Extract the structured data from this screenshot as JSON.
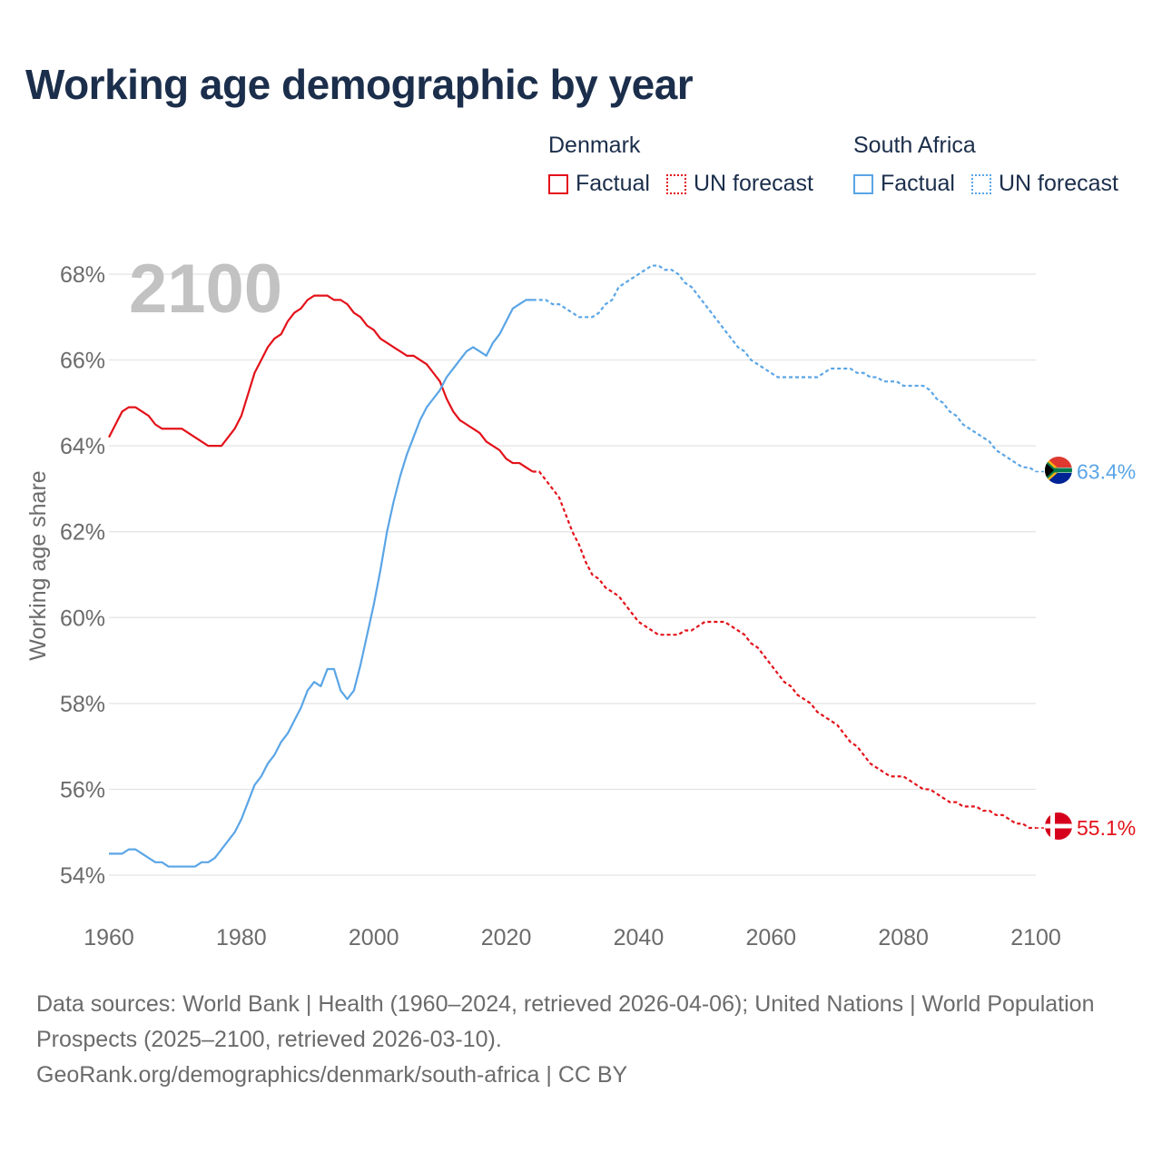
{
  "title": "Working age demographic by year",
  "legend": {
    "groups": [
      {
        "name": "Denmark",
        "factual": "Factual",
        "forecast": "UN forecast",
        "color": "#e3121a"
      },
      {
        "name": "South Africa",
        "factual": "Factual",
        "forecast": "UN forecast",
        "color": "#5aa5e6"
      }
    ]
  },
  "footer": {
    "sources": "Data sources: World Bank | Health (1960–2024, retrieved 2026-04-06); United Nations | World Population Prospects (2025–2100, retrieved 2026-03-10).",
    "link": "GeoRank.org/demographics/denmark/south-africa | CC BY"
  },
  "chart_data": {
    "type": "line",
    "title": "Working age demographic by year",
    "year_watermark": "2100",
    "xlabel": "",
    "ylabel": "Working age share",
    "xlim": [
      1960,
      2100
    ],
    "ylim": [
      53.8,
      68.4
    ],
    "x_ticks": [
      1960,
      1980,
      2000,
      2020,
      2040,
      2060,
      2080,
      2100
    ],
    "y_ticks": [
      54,
      56,
      58,
      60,
      62,
      64,
      66,
      68
    ],
    "y_tick_labels": [
      "54%",
      "56%",
      "58%",
      "60%",
      "62%",
      "64%",
      "66%",
      "68%"
    ],
    "grid": true,
    "factual_end_year": 2024,
    "series": [
      {
        "name": "Denmark",
        "color": "#e3121a",
        "end_label": "55.1%",
        "points": [
          [
            1960,
            64.2
          ],
          [
            1961,
            64.5
          ],
          [
            1962,
            64.8
          ],
          [
            1963,
            64.9
          ],
          [
            1964,
            64.9
          ],
          [
            1965,
            64.8
          ],
          [
            1966,
            64.7
          ],
          [
            1967,
            64.5
          ],
          [
            1968,
            64.4
          ],
          [
            1969,
            64.4
          ],
          [
            1970,
            64.4
          ],
          [
            1971,
            64.4
          ],
          [
            1972,
            64.3
          ],
          [
            1973,
            64.2
          ],
          [
            1974,
            64.1
          ],
          [
            1975,
            64.0
          ],
          [
            1976,
            64.0
          ],
          [
            1977,
            64.0
          ],
          [
            1978,
            64.2
          ],
          [
            1979,
            64.4
          ],
          [
            1980,
            64.7
          ],
          [
            1981,
            65.2
          ],
          [
            1982,
            65.7
          ],
          [
            1983,
            66.0
          ],
          [
            1984,
            66.3
          ],
          [
            1985,
            66.5
          ],
          [
            1986,
            66.6
          ],
          [
            1987,
            66.9
          ],
          [
            1988,
            67.1
          ],
          [
            1989,
            67.2
          ],
          [
            1990,
            67.4
          ],
          [
            1991,
            67.5
          ],
          [
            1992,
            67.5
          ],
          [
            1993,
            67.5
          ],
          [
            1994,
            67.4
          ],
          [
            1995,
            67.4
          ],
          [
            1996,
            67.3
          ],
          [
            1997,
            67.1
          ],
          [
            1998,
            67.0
          ],
          [
            1999,
            66.8
          ],
          [
            2000,
            66.7
          ],
          [
            2001,
            66.5
          ],
          [
            2002,
            66.4
          ],
          [
            2003,
            66.3
          ],
          [
            2004,
            66.2
          ],
          [
            2005,
            66.1
          ],
          [
            2006,
            66.1
          ],
          [
            2007,
            66.0
          ],
          [
            2008,
            65.9
          ],
          [
            2009,
            65.7
          ],
          [
            2010,
            65.5
          ],
          [
            2011,
            65.1
          ],
          [
            2012,
            64.8
          ],
          [
            2013,
            64.6
          ],
          [
            2014,
            64.5
          ],
          [
            2015,
            64.4
          ],
          [
            2016,
            64.3
          ],
          [
            2017,
            64.1
          ],
          [
            2018,
            64.0
          ],
          [
            2019,
            63.9
          ],
          [
            2020,
            63.7
          ],
          [
            2021,
            63.6
          ],
          [
            2022,
            63.6
          ],
          [
            2023,
            63.5
          ],
          [
            2024,
            63.4
          ],
          [
            2025,
            63.4
          ],
          [
            2026,
            63.2
          ],
          [
            2027,
            63.0
          ],
          [
            2028,
            62.8
          ],
          [
            2029,
            62.4
          ],
          [
            2030,
            62.0
          ],
          [
            2031,
            61.7
          ],
          [
            2032,
            61.3
          ],
          [
            2033,
            61.0
          ],
          [
            2034,
            60.9
          ],
          [
            2035,
            60.7
          ],
          [
            2036,
            60.6
          ],
          [
            2037,
            60.5
          ],
          [
            2038,
            60.3
          ],
          [
            2039,
            60.1
          ],
          [
            2040,
            59.9
          ],
          [
            2041,
            59.8
          ],
          [
            2042,
            59.7
          ],
          [
            2043,
            59.6
          ],
          [
            2044,
            59.6
          ],
          [
            2045,
            59.6
          ],
          [
            2046,
            59.6
          ],
          [
            2047,
            59.7
          ],
          [
            2048,
            59.7
          ],
          [
            2049,
            59.8
          ],
          [
            2050,
            59.9
          ],
          [
            2051,
            59.9
          ],
          [
            2052,
            59.9
          ],
          [
            2053,
            59.9
          ],
          [
            2054,
            59.8
          ],
          [
            2055,
            59.7
          ],
          [
            2056,
            59.6
          ],
          [
            2057,
            59.4
          ],
          [
            2058,
            59.3
          ],
          [
            2059,
            59.1
          ],
          [
            2060,
            58.9
          ],
          [
            2061,
            58.7
          ],
          [
            2062,
            58.5
          ],
          [
            2063,
            58.4
          ],
          [
            2064,
            58.2
          ],
          [
            2065,
            58.1
          ],
          [
            2066,
            58.0
          ],
          [
            2067,
            57.8
          ],
          [
            2068,
            57.7
          ],
          [
            2069,
            57.6
          ],
          [
            2070,
            57.5
          ],
          [
            2071,
            57.3
          ],
          [
            2072,
            57.1
          ],
          [
            2073,
            57.0
          ],
          [
            2074,
            56.8
          ],
          [
            2075,
            56.6
          ],
          [
            2076,
            56.5
          ],
          [
            2077,
            56.4
          ],
          [
            2078,
            56.3
          ],
          [
            2079,
            56.3
          ],
          [
            2080,
            56.3
          ],
          [
            2081,
            56.2
          ],
          [
            2082,
            56.1
          ],
          [
            2083,
            56.0
          ],
          [
            2084,
            56.0
          ],
          [
            2085,
            55.9
          ],
          [
            2086,
            55.8
          ],
          [
            2087,
            55.7
          ],
          [
            2088,
            55.7
          ],
          [
            2089,
            55.6
          ],
          [
            2090,
            55.6
          ],
          [
            2091,
            55.6
          ],
          [
            2092,
            55.5
          ],
          [
            2093,
            55.5
          ],
          [
            2094,
            55.4
          ],
          [
            2095,
            55.4
          ],
          [
            2096,
            55.3
          ],
          [
            2097,
            55.2
          ],
          [
            2098,
            55.2
          ],
          [
            2099,
            55.1
          ],
          [
            2100,
            55.1
          ]
        ]
      },
      {
        "name": "South Africa",
        "color": "#5aa5e6",
        "end_label": "63.4%",
        "points": [
          [
            1960,
            54.5
          ],
          [
            1961,
            54.5
          ],
          [
            1962,
            54.5
          ],
          [
            1963,
            54.6
          ],
          [
            1964,
            54.6
          ],
          [
            1965,
            54.5
          ],
          [
            1966,
            54.4
          ],
          [
            1967,
            54.3
          ],
          [
            1968,
            54.3
          ],
          [
            1969,
            54.2
          ],
          [
            1970,
            54.2
          ],
          [
            1971,
            54.2
          ],
          [
            1972,
            54.2
          ],
          [
            1973,
            54.2
          ],
          [
            1974,
            54.3
          ],
          [
            1975,
            54.3
          ],
          [
            1976,
            54.4
          ],
          [
            1977,
            54.6
          ],
          [
            1978,
            54.8
          ],
          [
            1979,
            55.0
          ],
          [
            1980,
            55.3
          ],
          [
            1981,
            55.7
          ],
          [
            1982,
            56.1
          ],
          [
            1983,
            56.3
          ],
          [
            1984,
            56.6
          ],
          [
            1985,
            56.8
          ],
          [
            1986,
            57.1
          ],
          [
            1987,
            57.3
          ],
          [
            1988,
            57.6
          ],
          [
            1989,
            57.9
          ],
          [
            1990,
            58.3
          ],
          [
            1991,
            58.5
          ],
          [
            1992,
            58.4
          ],
          [
            1993,
            58.8
          ],
          [
            1994,
            58.8
          ],
          [
            1995,
            58.3
          ],
          [
            1996,
            58.1
          ],
          [
            1997,
            58.3
          ],
          [
            1998,
            58.9
          ],
          [
            1999,
            59.6
          ],
          [
            2000,
            60.3
          ],
          [
            2001,
            61.1
          ],
          [
            2002,
            62.0
          ],
          [
            2003,
            62.7
          ],
          [
            2004,
            63.3
          ],
          [
            2005,
            63.8
          ],
          [
            2006,
            64.2
          ],
          [
            2007,
            64.6
          ],
          [
            2008,
            64.9
          ],
          [
            2009,
            65.1
          ],
          [
            2010,
            65.3
          ],
          [
            2011,
            65.6
          ],
          [
            2012,
            65.8
          ],
          [
            2013,
            66.0
          ],
          [
            2014,
            66.2
          ],
          [
            2015,
            66.3
          ],
          [
            2016,
            66.2
          ],
          [
            2017,
            66.1
          ],
          [
            2018,
            66.4
          ],
          [
            2019,
            66.6
          ],
          [
            2020,
            66.9
          ],
          [
            2021,
            67.2
          ],
          [
            2022,
            67.3
          ],
          [
            2023,
            67.4
          ],
          [
            2024,
            67.4
          ],
          [
            2025,
            67.4
          ],
          [
            2026,
            67.4
          ],
          [
            2027,
            67.3
          ],
          [
            2028,
            67.3
          ],
          [
            2029,
            67.2
          ],
          [
            2030,
            67.1
          ],
          [
            2031,
            67.0
          ],
          [
            2032,
            67.0
          ],
          [
            2033,
            67.0
          ],
          [
            2034,
            67.1
          ],
          [
            2035,
            67.3
          ],
          [
            2036,
            67.4
          ],
          [
            2037,
            67.7
          ],
          [
            2038,
            67.8
          ],
          [
            2039,
            67.9
          ],
          [
            2040,
            68.0
          ],
          [
            2041,
            68.1
          ],
          [
            2042,
            68.2
          ],
          [
            2043,
            68.2
          ],
          [
            2044,
            68.1
          ],
          [
            2045,
            68.1
          ],
          [
            2046,
            68.0
          ],
          [
            2047,
            67.8
          ],
          [
            2048,
            67.7
          ],
          [
            2049,
            67.5
          ],
          [
            2050,
            67.3
          ],
          [
            2051,
            67.1
          ],
          [
            2052,
            66.9
          ],
          [
            2053,
            66.7
          ],
          [
            2054,
            66.5
          ],
          [
            2055,
            66.3
          ],
          [
            2056,
            66.2
          ],
          [
            2057,
            66.0
          ],
          [
            2058,
            65.9
          ],
          [
            2059,
            65.8
          ],
          [
            2060,
            65.7
          ],
          [
            2061,
            65.6
          ],
          [
            2062,
            65.6
          ],
          [
            2063,
            65.6
          ],
          [
            2064,
            65.6
          ],
          [
            2065,
            65.6
          ],
          [
            2066,
            65.6
          ],
          [
            2067,
            65.6
          ],
          [
            2068,
            65.7
          ],
          [
            2069,
            65.8
          ],
          [
            2070,
            65.8
          ],
          [
            2071,
            65.8
          ],
          [
            2072,
            65.8
          ],
          [
            2073,
            65.7
          ],
          [
            2074,
            65.7
          ],
          [
            2075,
            65.6
          ],
          [
            2076,
            65.6
          ],
          [
            2077,
            65.5
          ],
          [
            2078,
            65.5
          ],
          [
            2079,
            65.5
          ],
          [
            2080,
            65.4
          ],
          [
            2081,
            65.4
          ],
          [
            2082,
            65.4
          ],
          [
            2083,
            65.4
          ],
          [
            2084,
            65.3
          ],
          [
            2085,
            65.1
          ],
          [
            2086,
            65.0
          ],
          [
            2087,
            64.8
          ],
          [
            2088,
            64.7
          ],
          [
            2089,
            64.5
          ],
          [
            2090,
            64.4
          ],
          [
            2091,
            64.3
          ],
          [
            2092,
            64.2
          ],
          [
            2093,
            64.1
          ],
          [
            2094,
            63.9
          ],
          [
            2095,
            63.8
          ],
          [
            2096,
            63.7
          ],
          [
            2097,
            63.6
          ],
          [
            2098,
            63.5
          ],
          [
            2099,
            63.5
          ],
          [
            2100,
            63.4
          ]
        ]
      }
    ]
  }
}
